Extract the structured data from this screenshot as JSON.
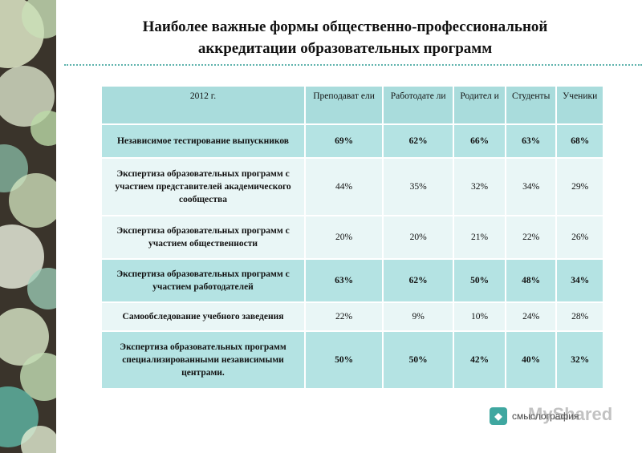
{
  "title": {
    "line1": "Наиболее важные формы общественно-профессиональной",
    "line2": "аккредитации  образовательных программ"
  },
  "table": {
    "headers": [
      "2012 г.",
      "Преподават ели",
      "Работодате ли",
      "Родител и",
      "Студенты",
      "Ученики"
    ],
    "rows": [
      {
        "label": "Независимое тестирование выпускников",
        "values": [
          "69%",
          "62%",
          "66%",
          "63%",
          "68%"
        ]
      },
      {
        "label": "Экспертиза образовательных программ с участием представителей академического сообщества",
        "values": [
          "44%",
          "35%",
          "32%",
          "34%",
          "29%"
        ]
      },
      {
        "label": "Экспертиза образовательных программ с участием общественности",
        "values": [
          "20%",
          "20%",
          "21%",
          "22%",
          "26%"
        ]
      },
      {
        "label": "Экспертиза образовательных программ с участием работодателей",
        "values": [
          "63%",
          "62%",
          "50%",
          "48%",
          "34%"
        ]
      },
      {
        "label": "Самообследование учебного заведения",
        "values": [
          "22%",
          "9%",
          "10%",
          "24%",
          "28%"
        ]
      },
      {
        "label": "Экспертиза образовательных программ специализированными независимыми центрами.",
        "values": [
          "50%",
          "50%",
          "42%",
          "40%",
          "32%"
        ]
      }
    ]
  },
  "footer": {
    "brand_text": "смыслография",
    "watermark": "MyShared",
    "logo_icon": "brand-logo-icon"
  },
  "colors": {
    "header_bg": "#a9dcdc",
    "dark_row": "#b4e3e3",
    "light_row": "#e9f6f6",
    "accent": "#5fb3ad"
  }
}
